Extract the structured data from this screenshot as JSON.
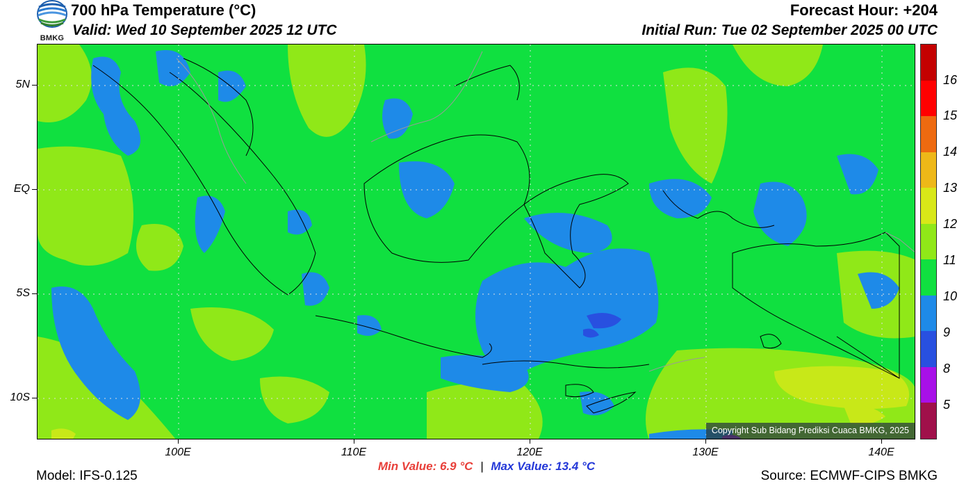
{
  "header": {
    "title": "700 hPa Temperature (°C)",
    "valid": "Valid: Wed 10 September 2025 12 UTC",
    "forecast_hour": "Forecast Hour: +204",
    "initial_run": "Initial Run: Tue 02 September 2025 00 UTC"
  },
  "logo": {
    "text": "BMKG",
    "icon": "bmkg-logo-icon"
  },
  "map": {
    "lat_labels": [
      "5N",
      "EQ",
      "5S",
      "10S"
    ],
    "lon_labels": [
      "100E",
      "110E",
      "120E",
      "130E",
      "140E"
    ],
    "copyright": "Copyright Sub Bidang Prediksi Cuaca BMKG, 2025"
  },
  "colorbar": {
    "labels": [
      "16",
      "15",
      "14",
      "13",
      "12",
      "11",
      "10",
      "9",
      "8",
      "5"
    ],
    "colors": [
      "#c40000",
      "#ff0000",
      "#ee6a10",
      "#eeb818",
      "#d8e818",
      "#90e818",
      "#10e040",
      "#1e8ae8",
      "#2850e0",
      "#a810e8",
      "#a0104a"
    ]
  },
  "footer": {
    "model": "Model: IFS-0.125",
    "min_value": "Min Value: 6.9 °C",
    "separator": "|",
    "max_value": "Max Value: 13.4 °C",
    "source": "Source: ECMWF-CIPS BMKG"
  }
}
